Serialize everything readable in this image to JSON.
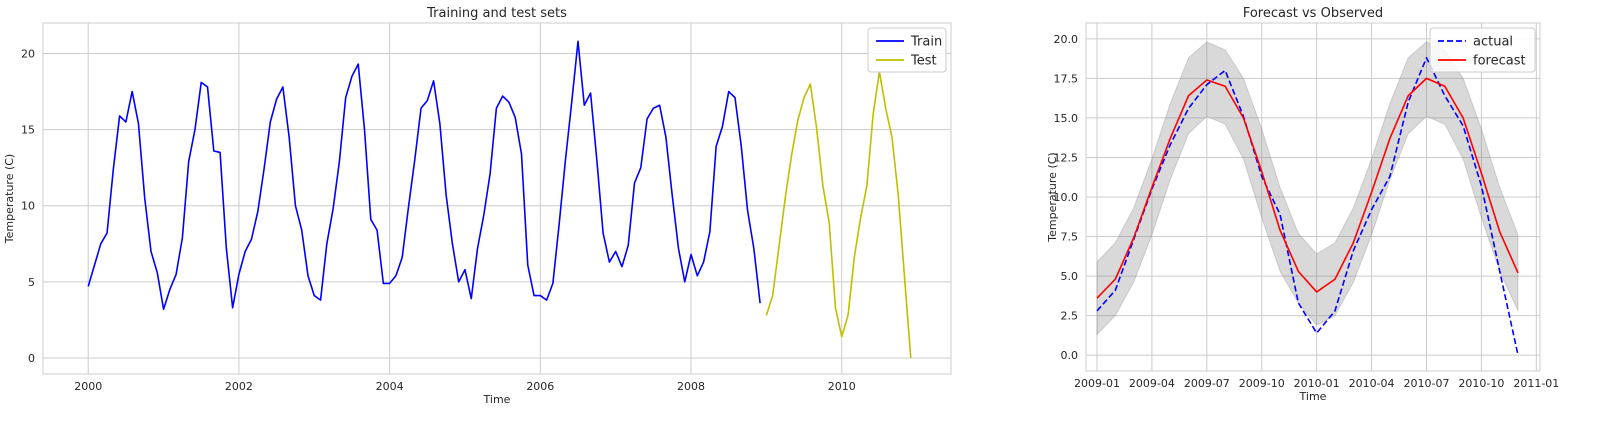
{
  "chart_data": [
    {
      "type": "line",
      "title": "Training and test sets",
      "xlabel": "Time",
      "ylabel": "Temperature (C)",
      "xlim": [
        1999.4,
        2011.45
      ],
      "ylim": [
        -1.05,
        22.0
      ],
      "xticks": [
        2000,
        2002,
        2004,
        2006,
        2008,
        2010
      ],
      "xtick_labels": [
        "2000",
        "2002",
        "2004",
        "2006",
        "2008",
        "2010"
      ],
      "yticks": [
        0,
        5,
        10,
        15,
        20
      ],
      "ytick_labels": [
        "0",
        "5",
        "10",
        "15",
        "20"
      ],
      "grid": true,
      "legend": "top-right",
      "series": [
        {
          "name": "Train",
          "color": "#0000ff",
          "dash": "solid",
          "x_start": 2000.0,
          "x_step_months": 1,
          "values": [
            4.7,
            6.1,
            7.5,
            8.2,
            12.4,
            15.9,
            15.5,
            17.5,
            15.4,
            10.5,
            7.0,
            5.6,
            3.2,
            4.5,
            5.5,
            7.9,
            12.9,
            15.0,
            18.1,
            17.8,
            13.6,
            13.5,
            7.2,
            3.3,
            5.5,
            7.0,
            7.8,
            9.6,
            12.4,
            15.5,
            17.0,
            17.8,
            14.5,
            10.0,
            8.4,
            5.4,
            4.1,
            3.8,
            7.5,
            9.8,
            12.9,
            17.1,
            18.5,
            19.3,
            15.0,
            9.1,
            8.4,
            4.9,
            4.9,
            5.4,
            6.6,
            9.9,
            13.0,
            16.4,
            16.9,
            18.2,
            15.4,
            10.7,
            7.5,
            5.0,
            5.8,
            3.9,
            7.2,
            9.4,
            12.1,
            16.4,
            17.2,
            16.8,
            15.8,
            13.4,
            6.1,
            4.1,
            4.1,
            3.8,
            4.9,
            8.8,
            13.0,
            16.8,
            20.8,
            16.6,
            17.4,
            13.0,
            8.2,
            6.3,
            7.0,
            6.0,
            7.4,
            11.5,
            12.5,
            15.7,
            16.4,
            16.6,
            14.5,
            10.7,
            7.2,
            5.0,
            6.8,
            5.4,
            6.3,
            8.3,
            13.9,
            15.2,
            17.5,
            17.1,
            13.9,
            9.7,
            7.2,
            3.6
          ]
        },
        {
          "name": "Test",
          "color": "#bfbf00",
          "dash": "solid",
          "x_start": 2009.0,
          "x_step_months": 1,
          "values": [
            2.8,
            4.1,
            7.3,
            10.5,
            13.3,
            15.6,
            17.1,
            18.0,
            15.1,
            11.3,
            8.9,
            3.3,
            1.4,
            2.8,
            6.6,
            9.2,
            11.3,
            16.0,
            18.8,
            16.4,
            14.5,
            10.7,
            5.3,
            0.0
          ]
        }
      ]
    },
    {
      "type": "line",
      "title": "Forecast vs Observed",
      "xlabel": "Time",
      "ylabel": "Temperature (C)",
      "xlim": [
        -0.6,
        24.2
      ],
      "ylim": [
        -1.0,
        21.0
      ],
      "xticks": [
        0,
        3,
        6,
        9,
        12,
        15,
        18,
        21,
        24
      ],
      "xtick_labels": [
        "2009-01",
        "2009-04",
        "2009-07",
        "2009-10",
        "2010-01",
        "2010-04",
        "2010-07",
        "2010-10",
        "2011-01"
      ],
      "yticks": [
        0.0,
        2.5,
        5.0,
        7.5,
        10.0,
        12.5,
        15.0,
        17.5,
        20.0
      ],
      "ytick_labels": [
        "0.0",
        "2.5",
        "5.0",
        "7.5",
        "10.0",
        "12.5",
        "15.0",
        "17.5",
        "20.0"
      ],
      "grid": true,
      "legend": "top-right",
      "x_index_meaning": "months since 2009-01",
      "series": [
        {
          "name": "actual",
          "color": "#0000ff",
          "dash": "dashed",
          "values": [
            2.8,
            4.1,
            7.3,
            10.5,
            13.3,
            15.6,
            17.1,
            18.0,
            15.1,
            11.3,
            8.9,
            3.3,
            1.4,
            2.8,
            6.6,
            9.2,
            11.3,
            16.0,
            18.8,
            16.4,
            14.5,
            10.7,
            5.3,
            0.0
          ]
        },
        {
          "name": "forecast",
          "color": "#ff0000",
          "dash": "solid",
          "values": [
            3.6,
            4.8,
            7.4,
            10.6,
            13.7,
            16.4,
            17.4,
            17.0,
            15.0,
            11.6,
            7.9,
            5.3,
            4.0,
            4.8,
            7.1,
            10.3,
            13.7,
            16.4,
            17.5,
            17.0,
            15.0,
            11.5,
            7.8,
            5.2
          ]
        }
      ],
      "confidence_band": {
        "color": "#808080",
        "lower": [
          1.3,
          2.5,
          4.6,
          7.6,
          11.1,
          14.0,
          15.1,
          14.6,
          12.4,
          8.7,
          5.3,
          3.3,
          1.9,
          2.5,
          4.6,
          7.6,
          11.1,
          14.0,
          15.1,
          14.6,
          12.4,
          8.7,
          5.3,
          2.8
        ],
        "upper": [
          5.9,
          7.1,
          9.3,
          12.4,
          15.9,
          18.8,
          19.8,
          19.3,
          17.5,
          14.3,
          10.6,
          7.7,
          6.4,
          7.1,
          9.3,
          12.4,
          15.9,
          18.8,
          19.8,
          19.3,
          17.5,
          14.3,
          10.6,
          7.6
        ]
      }
    }
  ]
}
